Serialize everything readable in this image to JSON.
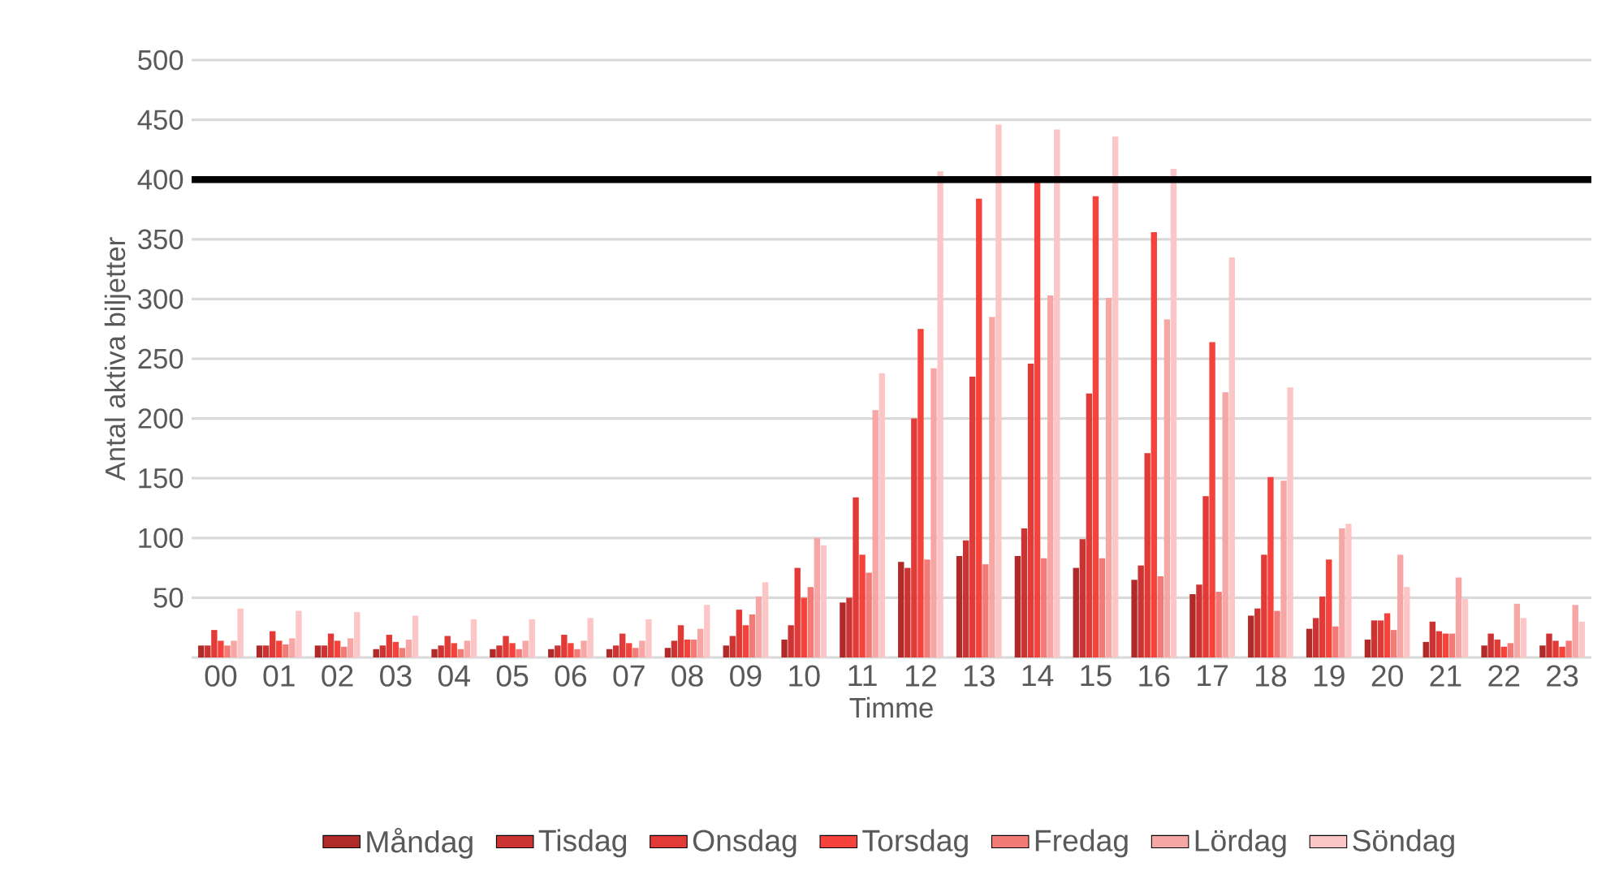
{
  "chart_data": {
    "type": "bar",
    "xlabel": "Timme",
    "ylabel": "Antal aktiva biljetter",
    "categories": [
      "00",
      "01",
      "02",
      "03",
      "04",
      "05",
      "06",
      "07",
      "08",
      "09",
      "10",
      "11",
      "12",
      "13",
      "14",
      "15",
      "16",
      "17",
      "18",
      "19",
      "20",
      "21",
      "22",
      "23"
    ],
    "series": [
      {
        "name": "Måndag",
        "color": "#b02a2a",
        "values": [
          10,
          10,
          10,
          7,
          7,
          7,
          7,
          7,
          8,
          10,
          15,
          46,
          80,
          85,
          85,
          75,
          65,
          53,
          35,
          24,
          15,
          13,
          10,
          10
        ]
      },
      {
        "name": "Tisdag",
        "color": "#cc3333",
        "values": [
          10,
          10,
          10,
          10,
          10,
          10,
          10,
          10,
          14,
          18,
          27,
          50,
          75,
          98,
          108,
          99,
          77,
          61,
          41,
          33,
          31,
          30,
          20,
          20
        ]
      },
      {
        "name": "Onsdag",
        "color": "#e23a36",
        "values": [
          23,
          22,
          20,
          19,
          18,
          18,
          19,
          20,
          27,
          40,
          75,
          134,
          200,
          235,
          246,
          221,
          171,
          135,
          86,
          51,
          31,
          22,
          15,
          14
        ]
      },
      {
        "name": "Torsdag",
        "color": "#f5433b",
        "values": [
          14,
          14,
          14,
          13,
          12,
          12,
          12,
          12,
          15,
          27,
          50,
          86,
          275,
          384,
          399,
          386,
          356,
          264,
          151,
          82,
          37,
          20,
          9,
          9
        ]
      },
      {
        "name": "Fredag",
        "color": "#f27b77",
        "values": [
          10,
          11,
          9,
          8,
          7,
          7,
          7,
          8,
          15,
          36,
          59,
          71,
          82,
          78,
          83,
          83,
          68,
          55,
          39,
          26,
          23,
          20,
          12,
          14
        ]
      },
      {
        "name": "Lördag",
        "color": "#f6a6a4",
        "values": [
          14,
          16,
          16,
          15,
          14,
          14,
          14,
          14,
          24,
          51,
          100,
          207,
          242,
          285,
          303,
          301,
          283,
          222,
          148,
          108,
          86,
          67,
          45,
          44
        ]
      },
      {
        "name": "Söndag",
        "color": "#fbc6c5",
        "values": [
          41,
          39,
          38,
          35,
          32,
          32,
          33,
          32,
          44,
          63,
          94,
          238,
          407,
          446,
          442,
          436,
          409,
          335,
          226,
          112,
          59,
          49,
          33,
          30
        ]
      }
    ],
    "ylim": [
      0,
      500
    ],
    "yticks": [
      50,
      100,
      150,
      200,
      250,
      300,
      350,
      400,
      450,
      500
    ],
    "grid": "y",
    "legend": "bottom",
    "ref_lines": [
      {
        "axis": "y",
        "value": 400,
        "color": "#000000"
      }
    ]
  }
}
